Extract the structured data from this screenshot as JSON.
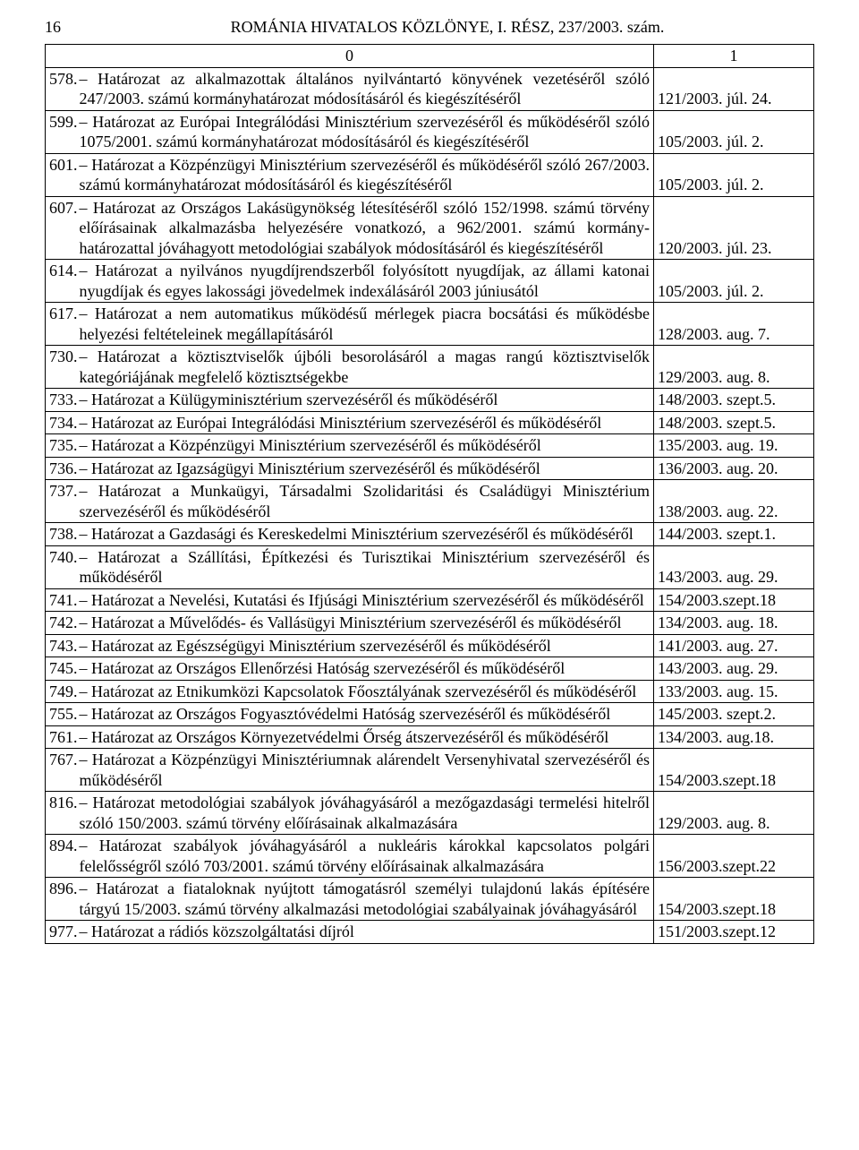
{
  "page_number": "16",
  "header": "ROMÁNIA HIVATALOS KÖZLÖNYE, I. RÉSZ, 237/2003. szám.",
  "col0_header": "0",
  "col1_header": "1",
  "rows": [
    {
      "num": "578.",
      "text": "– Határozat az alkalmazottak általános nyilvántartó könyvének vezetéséről szóló 247/2003. számú kormányhatározat módosításáról és kiegészítéséről",
      "ref": "121/2003. júl. 24."
    },
    {
      "num": "599.",
      "text": "– Határozat az Európai Integrálódási Minisztérium szervezéséről és működéséről szóló 1075/2001. számú kormányhatározat módosításáról és kiegészítéséről",
      "ref": "105/2003. júl. 2."
    },
    {
      "num": "601.",
      "text": "– Határozat a Közpénzügyi Minisztérium szervezéséről és működéséről szóló 267/2003. számú kormányhatározat módosításáról és kiegészítéséről",
      "ref": "105/2003. júl. 2."
    },
    {
      "num": "607.",
      "text": "– Határozat az Országos Lakásügynökség létesítéséről szóló 152/1998. számú törvény előírásainak alkalmazásba helyezésére vonatkozó, a 962/2001. számú kormány-határozattal jóváhagyott metodológiai szabályok módosításáról és kiegészítéséről",
      "ref": "120/2003. júl. 23."
    },
    {
      "num": "614.",
      "text": "– Határozat a nyilvános nyugdíjrendszerből folyósított nyugdíjak, az állami katonai nyugdíjak és egyes lakossági jövedelmek indexálásáról 2003 júniusától",
      "ref": "105/2003. júl. 2."
    },
    {
      "num": "617.",
      "text": "– Határozat a nem automatikus működésű mérlegek piacra bocsátási és működésbe helyezési feltételeinek megállapításáról",
      "ref": "128/2003. aug. 7."
    },
    {
      "num": "730.",
      "text": "– Határozat a köztisztviselők újbóli besorolásáról a magas rangú köztisztviselők kategóriájának megfelelő köztisztségekbe",
      "ref": "129/2003. aug. 8."
    },
    {
      "num": "733.",
      "text": "– Határozat a Külügyminisztérium szervezéséről és működéséről",
      "ref": "148/2003. szept.5.",
      "short": true
    },
    {
      "num": "734.",
      "text": "– Határozat az Európai Integrálódási Minisztérium szervezéséről és működéséről",
      "ref": "148/2003. szept.5.",
      "short": true
    },
    {
      "num": "735.",
      "text": "– Határozat a Közpénzügyi Minisztérium szervezéséről és működéséről",
      "ref": "135/2003. aug. 19.",
      "short": true
    },
    {
      "num": "736.",
      "text": "– Határozat az Igazságügyi Minisztérium szervezéséről és működéséről",
      "ref": "136/2003. aug. 20.",
      "short": true
    },
    {
      "num": "737.",
      "text": "– Határozat a Munkaügyi, Társadalmi Szolidaritási és Családügyi Minisztérium szervezéséről és működéséről",
      "ref": "138/2003. aug. 22."
    },
    {
      "num": "738.",
      "text": "– Határozat a Gazdasági és Kereskedelmi Minisztérium szervezéséről és működéséről",
      "ref": "144/2003. szept.1."
    },
    {
      "num": "740.",
      "text": "– Határozat a Szállítási, Építkezési és Turisztikai Minisztérium szervezéséről és működéséről",
      "ref": "143/2003. aug. 29."
    },
    {
      "num": "741.",
      "text": "– Határozat a Nevelési, Kutatási és Ifjúsági Minisztérium szervezéséről és működéséről",
      "ref": "154/2003.szept.18"
    },
    {
      "num": "742.",
      "text": "– Határozat a Művelődés- és Vallásügyi Minisztérium szervezéséről és működéséről",
      "ref": "134/2003. aug. 18."
    },
    {
      "num": "743.",
      "text": "– Határozat az Egészségügyi Minisztérium szervezéséről és működéséről",
      "ref": "141/2003. aug. 27.",
      "short": true
    },
    {
      "num": "745.",
      "text": "– Határozat az Országos Ellenőrzési Hatóság szervezéséről és működéséről",
      "ref": "143/2003. aug. 29.",
      "short": true
    },
    {
      "num": "749.",
      "text": "– Határozat az Etnikumközi Kapcsolatok Főosztályának szervezéséről és működéséről",
      "ref": "133/2003. aug. 15.",
      "reftop": true
    },
    {
      "num": "755.",
      "text": "– Határozat az Országos Fogyasztóvédelmi Hatóság szervezéséről és működéséről",
      "ref": "145/2003. szept.2.",
      "reftop": true
    },
    {
      "num": "761.",
      "text": "– Határozat az Országos Környezetvédelmi Őrség átszervezéséről és működéséről",
      "ref": "134/2003. aug.18.",
      "short": true
    },
    {
      "num": "767.",
      "text": "– Határozat a Közpénzügyi Minisztériumnak alárendelt Versenyhivatal szervezéséről és működéséről",
      "ref": "154/2003.szept.18"
    },
    {
      "num": "816.",
      "text": "– Határozat metodológiai szabályok jóváhagyásáról a mezőgazdasági termelési hitelről szóló 150/2003. számú törvény előírásainak alkalmazására",
      "ref": "129/2003. aug. 8."
    },
    {
      "num": "894.",
      "text": "– Határozat szabályok jóváhagyásáról a nukleáris károkkal kapcsolatos polgári felelősségről szóló 703/2001. számú törvény előírásainak alkalmazására",
      "ref": "156/2003.szept.22"
    },
    {
      "num": "896.",
      "text": "– Határozat a fiataloknak nyújtott támogatásról személyi tulajdonú lakás építésére tárgyú 15/2003. számú törvény alkalmazási metodológiai szabályainak jóváhagyásáról",
      "ref": "154/2003.szept.18"
    },
    {
      "num": "977.",
      "text": "– Határozat a rádiós közszolgáltatási díjról",
      "ref": "151/2003.szept.12",
      "short": true
    }
  ]
}
